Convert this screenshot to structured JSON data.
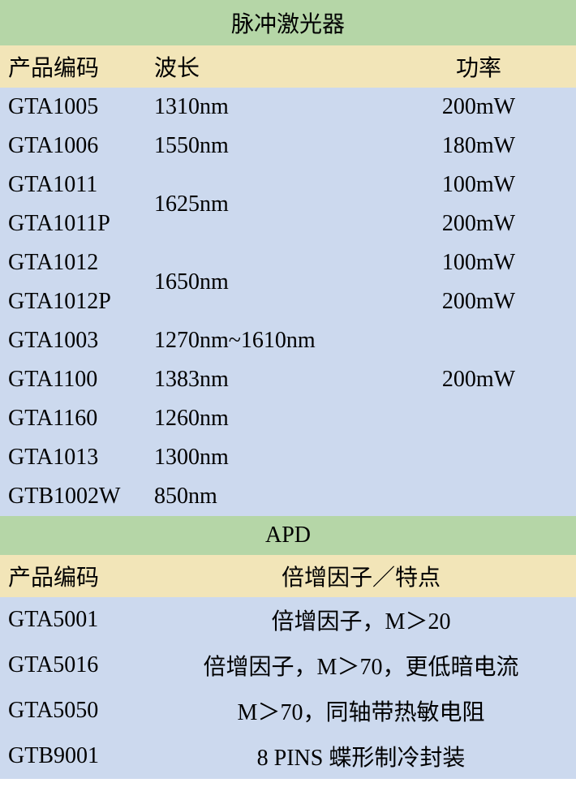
{
  "colors": {
    "section_header_bg": "#b5d6a7",
    "col_header_bg": "#f2e5b8",
    "data_row_bg": "#ccd9ee",
    "text_color": "#000000"
  },
  "typography": {
    "font_family": "SimSun",
    "font_size": 28
  },
  "section1": {
    "title": "脉冲激光器",
    "columns": {
      "code": "产品编码",
      "wavelength": "波长",
      "power": "功率"
    },
    "rows": [
      {
        "code": "GTA1005",
        "wavelength": "1310nm",
        "power": "200mW"
      },
      {
        "code": "GTA1006",
        "wavelength": "1550nm",
        "power": "180mW"
      },
      {
        "code": "GTA1011",
        "wavelength": "1625nm",
        "power": "100mW",
        "wavelength_rowspan": 2
      },
      {
        "code": "GTA1011P",
        "power": "200mW",
        "skip_wavelength": true
      },
      {
        "code": "GTA1012",
        "wavelength": "1650nm",
        "power": "100mW",
        "wavelength_rowspan": 2
      },
      {
        "code": "GTA1012P",
        "power": "200mW",
        "skip_wavelength": true
      },
      {
        "code": "GTA1003",
        "wavelength": "1270nm~1610nm",
        "power": ""
      },
      {
        "code": "GTA1100",
        "wavelength": "1383nm",
        "power": "200mW"
      },
      {
        "code": "GTA1160",
        "wavelength": "1260nm",
        "power": ""
      },
      {
        "code": "GTA1013",
        "wavelength": "1300nm",
        "power": ""
      },
      {
        "code": "GTB1002W",
        "wavelength": "850nm",
        "power": ""
      }
    ]
  },
  "section2": {
    "title": "APD",
    "columns": {
      "code": "产品编码",
      "feature": "倍增因子／特点"
    },
    "rows": [
      {
        "code": "GTA5001",
        "feature": "倍增因子，M＞20"
      },
      {
        "code": "GTA5016",
        "feature": "倍增因子，M＞70，更低暗电流"
      },
      {
        "code": "GTA5050",
        "feature": "M＞70，同轴带热敏电阻"
      },
      {
        "code": "GTB9001",
        "feature": "8 PINS 蝶形制冷封装"
      }
    ]
  }
}
